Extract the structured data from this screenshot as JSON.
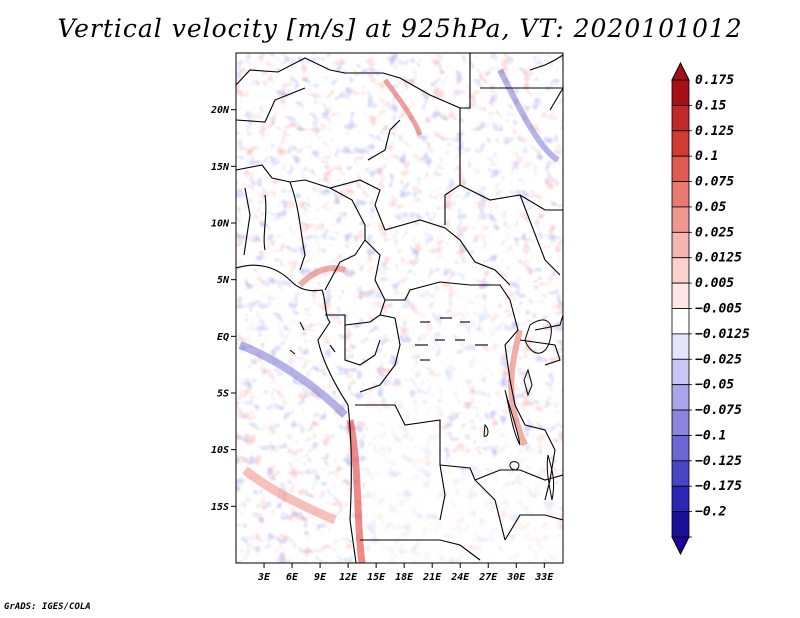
{
  "title": "Vertical velocity [m/s] at 925hPa, VT: 2020101012",
  "credit": "GrADS: IGES/COLA",
  "map": {
    "variable": "Vertical velocity",
    "units": "m/s",
    "level": "925hPa",
    "valid_time": "2020101012",
    "lon_range": [
      0,
      35
    ],
    "lat_range": [
      -20,
      25
    ],
    "lon_ticks": [
      {
        "value": 3,
        "label": "3E"
      },
      {
        "value": 6,
        "label": "6E"
      },
      {
        "value": 9,
        "label": "9E"
      },
      {
        "value": 12,
        "label": "12E"
      },
      {
        "value": 15,
        "label": "15E"
      },
      {
        "value": 18,
        "label": "18E"
      },
      {
        "value": 21,
        "label": "21E"
      },
      {
        "value": 24,
        "label": "24E"
      },
      {
        "value": 27,
        "label": "27E"
      },
      {
        "value": 30,
        "label": "30E"
      },
      {
        "value": 33,
        "label": "33E"
      }
    ],
    "lat_ticks": [
      {
        "value": 20,
        "label": "20N"
      },
      {
        "value": 15,
        "label": "15N"
      },
      {
        "value": 10,
        "label": "10N"
      },
      {
        "value": 5,
        "label": "5N"
      },
      {
        "value": 0,
        "label": "EQ"
      },
      {
        "value": -5,
        "label": "5S"
      },
      {
        "value": -10,
        "label": "10S"
      },
      {
        "value": -15,
        "label": "15S"
      }
    ]
  },
  "colorbar": {
    "levels": [
      {
        "label": "0.175",
        "color": "#a50f15"
      },
      {
        "label": "0.15",
        "color": "#c0282a"
      },
      {
        "label": "0.125",
        "color": "#d23a34"
      },
      {
        "label": "0.1",
        "color": "#e05a50"
      },
      {
        "label": "0.075",
        "color": "#e87a70"
      },
      {
        "label": "0.05",
        "color": "#f09890"
      },
      {
        "label": "0.025",
        "color": "#f6b6b0"
      },
      {
        "label": "0.0125",
        "color": "#fad2cd"
      },
      {
        "label": "0.005",
        "color": "#fde6e3"
      },
      {
        "label": "−0.005",
        "color": "#ffffff"
      },
      {
        "label": "−0.0125",
        "color": "#e6e4fa"
      },
      {
        "label": "−0.025",
        "color": "#c8c6f2"
      },
      {
        "label": "−0.05",
        "color": "#a9a6ea"
      },
      {
        "label": "−0.075",
        "color": "#8a86e0"
      },
      {
        "label": "−0.1",
        "color": "#6a66d4"
      },
      {
        "label": "−0.125",
        "color": "#4a45c6"
      },
      {
        "label": "−0.175",
        "color": "#2c26b4"
      },
      {
        "label": "−0.2",
        "color": "#1a0f9a"
      }
    ],
    "bottom_color": "#22009e"
  }
}
